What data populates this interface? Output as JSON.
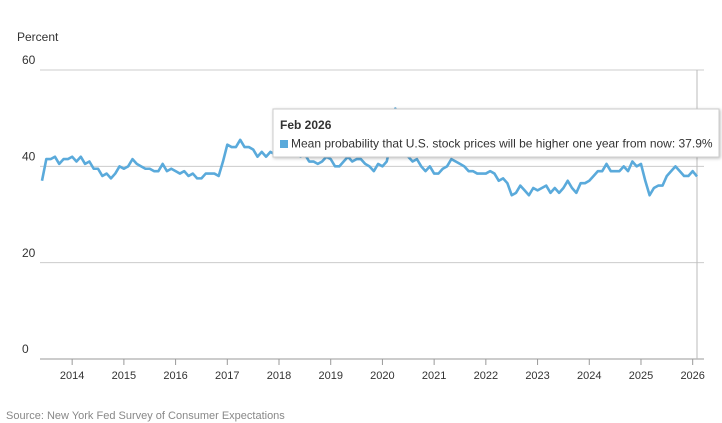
{
  "chart_data": {
    "type": "line",
    "y_label": "Percent",
    "source": "Source: New York Fed Survey of Consumer Expectations",
    "x": [
      "Jun 2013",
      "Jul 2013",
      "Aug 2013",
      "Sep 2013",
      "Oct 2013",
      "Nov 2013",
      "Dec 2013",
      "Jan 2014",
      "Feb 2014",
      "Mar 2014",
      "Apr 2014",
      "May 2014",
      "Jun 2014",
      "Jul 2014",
      "Aug 2014",
      "Sep 2014",
      "Oct 2014",
      "Nov 2014",
      "Dec 2014",
      "Jan 2015",
      "Feb 2015",
      "Mar 2015",
      "Apr 2015",
      "May 2015",
      "Jun 2015",
      "Jul 2015",
      "Aug 2015",
      "Sep 2015",
      "Oct 2015",
      "Nov 2015",
      "Dec 2015",
      "Jan 2016",
      "Feb 2016",
      "Mar 2016",
      "Apr 2016",
      "May 2016",
      "Jun 2016",
      "Jul 2016",
      "Aug 2016",
      "Sep 2016",
      "Oct 2016",
      "Nov 2016",
      "Dec 2016",
      "Jan 2017",
      "Feb 2017",
      "Mar 2017",
      "Apr 2017",
      "May 2017",
      "Jun 2017",
      "Jul 2017",
      "Aug 2017",
      "Sep 2017",
      "Oct 2017",
      "Nov 2017",
      "Dec 2017",
      "Jan 2018",
      "Feb 2018",
      "Mar 2018",
      "Apr 2018",
      "May 2018",
      "Jun 2018",
      "Jul 2018",
      "Aug 2018",
      "Sep 2018",
      "Oct 2018",
      "Nov 2018",
      "Dec 2018",
      "Jan 2019",
      "Feb 2019",
      "Mar 2019",
      "Apr 2019",
      "May 2019",
      "Jun 2019",
      "Jul 2019",
      "Aug 2019",
      "Sep 2019",
      "Oct 2019",
      "Nov 2019",
      "Dec 2019",
      "Jan 2020",
      "Feb 2020",
      "Mar 2020",
      "Apr 2020",
      "May 2020",
      "Jun 2020",
      "Jul 2020",
      "Aug 2020",
      "Sep 2020",
      "Oct 2020",
      "Nov 2020",
      "Dec 2020",
      "Jan 2021",
      "Feb 2021",
      "Mar 2021",
      "Apr 2021",
      "May 2021",
      "Jun 2021",
      "Jul 2021",
      "Aug 2021",
      "Sep 2021",
      "Oct 2021",
      "Nov 2021",
      "Dec 2021",
      "Jan 2022",
      "Feb 2022",
      "Mar 2022",
      "Apr 2022",
      "May 2022",
      "Jun 2022",
      "Jul 2022",
      "Aug 2022",
      "Sep 2022",
      "Oct 2022",
      "Nov 2022",
      "Dec 2022",
      "Jan 2023",
      "Feb 2023",
      "Mar 2023",
      "Apr 2023",
      "May 2023",
      "Jun 2023",
      "Jul 2023",
      "Aug 2023",
      "Sep 2023",
      "Oct 2023",
      "Nov 2023",
      "Dec 2023",
      "Jan 2024",
      "Feb 2024",
      "Mar 2024",
      "Apr 2024",
      "May 2024",
      "Jun 2024",
      "Jul 2024",
      "Aug 2024",
      "Sep 2024",
      "Oct 2024",
      "Nov 2024",
      "Dec 2024",
      "Jan 2025",
      "Feb 2025",
      "Mar 2025",
      "Apr 2025",
      "May 2025",
      "Jun 2025",
      "Jul 2025",
      "Aug 2025",
      "Sep 2025",
      "Oct 2025",
      "Nov 2025",
      "Dec 2025",
      "Jan 2026",
      "Feb 2026"
    ],
    "series": [
      {
        "name": "Mean probability that U.S. stock prices will be higher one year from now",
        "color": "#5aaadb",
        "values": [
          37,
          41.5,
          41.5,
          42,
          40.5,
          41.5,
          41.5,
          42,
          41,
          42,
          40.5,
          41,
          39.5,
          39.5,
          38,
          38.5,
          37.5,
          38.5,
          40,
          39.5,
          40,
          41.5,
          40.5,
          40,
          39.5,
          39.5,
          39,
          39,
          40.5,
          39,
          39.5,
          39,
          38.5,
          39,
          38,
          38.5,
          37.5,
          37.5,
          38.5,
          38.5,
          38.5,
          38,
          41,
          44.5,
          44,
          44,
          45.5,
          44,
          44,
          43.5,
          42,
          43,
          42,
          43,
          42.5,
          43.5,
          44,
          44.5,
          43,
          42.5,
          42,
          42.5,
          41,
          41,
          40.5,
          41,
          42,
          41.5,
          40,
          40,
          41,
          42,
          41,
          41.5,
          41.5,
          40.5,
          40,
          39,
          40.5,
          40,
          41,
          45,
          52,
          47,
          44,
          42,
          41,
          41.5,
          40,
          39,
          40,
          38.5,
          38.5,
          39.5,
          40,
          41.5,
          41,
          40.5,
          40,
          39,
          39,
          38.5,
          38.5,
          38.5,
          39,
          38.5,
          37,
          37.5,
          36.5,
          34,
          34.5,
          36,
          35,
          34,
          35.5,
          35,
          35.5,
          36,
          34.5,
          35.5,
          34.5,
          35.5,
          37,
          35.5,
          34.5,
          36.5,
          36.5,
          37,
          38,
          39,
          39,
          40.5,
          39,
          39,
          39,
          40,
          39,
          41,
          40,
          40.5,
          37,
          34,
          35.5,
          36,
          36,
          38,
          39,
          40,
          39,
          38,
          38,
          39,
          37.9
        ]
      }
    ],
    "ylim": [
      0,
      60
    ],
    "yticks": [
      0,
      20,
      40,
      60
    ],
    "grid": true,
    "xticks": [
      {
        "value": "Jan 2014",
        "label": "2014"
      },
      {
        "value": "Jan 2015",
        "label": "2015"
      },
      {
        "value": "Jan 2016",
        "label": "2016"
      },
      {
        "value": "Jan 2017",
        "label": "2017"
      },
      {
        "value": "Jan 2018",
        "label": "2018"
      },
      {
        "value": "Jan 2019",
        "label": "2019"
      },
      {
        "value": "Jan 2020",
        "label": "2020"
      },
      {
        "value": "Jan 2021",
        "label": "2021"
      },
      {
        "value": "Jan 2022",
        "label": "2022"
      },
      {
        "value": "Jan 2023",
        "label": "2023"
      },
      {
        "value": "Jan 2024",
        "label": "2024"
      },
      {
        "value": "Jan 2025",
        "label": "2025"
      },
      {
        "value": "Jan 2026",
        "label": "2026"
      }
    ],
    "tooltip": {
      "x": "Feb 2026",
      "label": "Mean probability that U.S. stock prices will be higher one year from now: 37.9%"
    }
  }
}
